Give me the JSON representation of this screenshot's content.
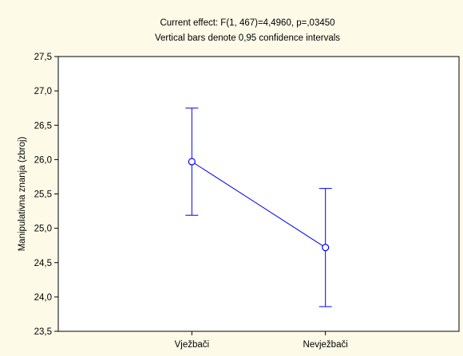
{
  "chart_data": {
    "type": "line",
    "title": "Current effect: F(1, 467)=4,4960, p=,03450",
    "subtitle": "Vertical bars denote 0,95 confidence intervals",
    "xlabel": "",
    "ylabel": "Manipulativna znanja (zbroj)",
    "categories": [
      "Vježbači",
      "Nevježbači"
    ],
    "series": [
      {
        "values": [
          25.97,
          24.72
        ],
        "ci_lower": [
          25.19,
          23.86
        ],
        "ci_upper": [
          26.75,
          25.58
        ]
      }
    ],
    "ylim": [
      23.5,
      27.5
    ],
    "yticks": [
      "23,5",
      "24,0",
      "24,5",
      "25,0",
      "25,5",
      "26,0",
      "26,5",
      "27,0",
      "27,5"
    ],
    "ytick_values": [
      23.5,
      24.0,
      24.5,
      25.0,
      25.5,
      26.0,
      26.5,
      27.0,
      27.5
    ],
    "grid": false,
    "line_color": "#0000ff",
    "background_color": "#fdfbe8",
    "plot_background_color": "#ffffff"
  }
}
